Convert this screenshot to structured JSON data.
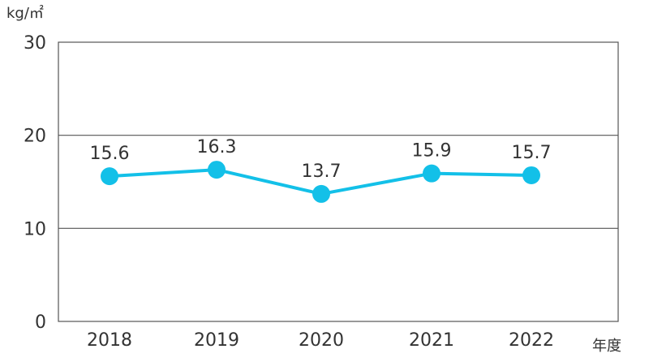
{
  "chart_data": {
    "type": "line",
    "unit_label": "kg/㎡",
    "x_unit": "年度",
    "categories": [
      "2018",
      "2019",
      "2020",
      "2021",
      "2022"
    ],
    "values": [
      15.6,
      16.3,
      13.7,
      15.9,
      15.7
    ],
    "data_labels": [
      "15.6",
      "16.3",
      "13.7",
      "15.9",
      "15.7"
    ],
    "y_ticks": [
      "0",
      "10",
      "20",
      "30"
    ],
    "ylim": [
      0,
      30
    ],
    "grid": true,
    "legend": "none",
    "colors": {
      "series": "#13C0E8",
      "grid": "#555555",
      "axis": "#555555"
    }
  }
}
